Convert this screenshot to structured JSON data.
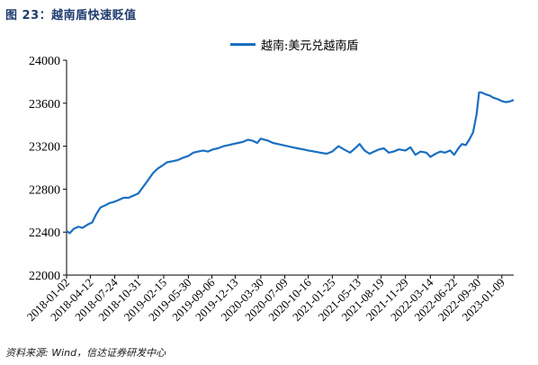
{
  "figure": {
    "title": "图 23：越南盾快速贬值",
    "source": "资料来源: Wind，信达证券研发中心"
  },
  "colors": {
    "line": "#1a6fc0",
    "axis": "#000000",
    "title": "#1f3b6e"
  },
  "chart_data": {
    "type": "line",
    "title": "",
    "xlabel": "",
    "ylabel": "",
    "ylim": [
      22000,
      24000
    ],
    "yticks": [
      22000,
      22400,
      22800,
      23200,
      23600,
      24000
    ],
    "xlim": [
      "2018-01-02",
      "2023-02-28"
    ],
    "xticks": [
      "2018-01-02",
      "2018-04-12",
      "2018-07-24",
      "2018-10-31",
      "2019-02-15",
      "2019-05-30",
      "2019-09-06",
      "2019-12-13",
      "2020-03-30",
      "2020-07-09",
      "2020-10-16",
      "2021-01-25",
      "2021-05-13",
      "2021-08-19",
      "2021-11-29",
      "2022-03-14",
      "2022-06-22",
      "2022-09-30",
      "2023-01-09"
    ],
    "grid": false,
    "legend_position": "top",
    "series": [
      {
        "name": "越南:美元兑越南盾",
        "x": [
          "2018-01-02",
          "2018-01-15",
          "2018-02-01",
          "2018-02-20",
          "2018-03-10",
          "2018-04-01",
          "2018-04-20",
          "2018-05-05",
          "2018-05-25",
          "2018-06-15",
          "2018-07-01",
          "2018-07-20",
          "2018-08-10",
          "2018-08-30",
          "2018-09-20",
          "2018-10-10",
          "2018-10-31",
          "2018-11-20",
          "2018-12-10",
          "2019-01-01",
          "2019-01-20",
          "2019-02-10",
          "2019-03-01",
          "2019-03-25",
          "2019-04-15",
          "2019-05-05",
          "2019-05-30",
          "2019-06-20",
          "2019-07-10",
          "2019-08-01",
          "2019-08-20",
          "2019-09-10",
          "2019-10-01",
          "2019-10-25",
          "2019-11-15",
          "2019-12-05",
          "2019-12-25",
          "2020-01-15",
          "2020-02-05",
          "2020-02-25",
          "2020-03-15",
          "2020-03-30",
          "2020-04-15",
          "2020-05-01",
          "2020-05-20",
          "2020-06-10",
          "2020-07-01",
          "2020-07-20",
          "2020-08-10",
          "2020-09-01",
          "2020-09-25",
          "2020-10-16",
          "2020-11-10",
          "2020-12-05",
          "2021-01-01",
          "2021-01-25",
          "2021-02-20",
          "2021-03-15",
          "2021-04-10",
          "2021-05-01",
          "2021-05-20",
          "2021-06-10",
          "2021-07-01",
          "2021-07-20",
          "2021-08-10",
          "2021-08-30",
          "2021-09-20",
          "2021-10-10",
          "2021-11-01",
          "2021-11-29",
          "2021-12-20",
          "2022-01-10",
          "2022-02-01",
          "2022-02-25",
          "2022-03-14",
          "2022-04-05",
          "2022-04-25",
          "2022-05-15",
          "2022-06-05",
          "2022-06-22",
          "2022-07-10",
          "2022-07-25",
          "2022-08-10",
          "2022-08-25",
          "2022-09-10",
          "2022-09-25",
          "2022-10-05",
          "2022-10-15",
          "2022-10-25",
          "2022-11-05",
          "2022-11-20",
          "2022-12-05",
          "2022-12-20",
          "2023-01-09",
          "2023-01-25",
          "2023-02-10",
          "2023-02-28"
        ],
        "values": [
          22410,
          22390,
          22430,
          22450,
          22440,
          22470,
          22490,
          22560,
          22630,
          22650,
          22670,
          22680,
          22700,
          22720,
          22720,
          22740,
          22760,
          22820,
          22880,
          22950,
          22990,
          23020,
          23050,
          23060,
          23070,
          23090,
          23110,
          23140,
          23150,
          23160,
          23150,
          23170,
          23180,
          23200,
          23210,
          23220,
          23230,
          23240,
          23260,
          23250,
          23230,
          23270,
          23260,
          23250,
          23230,
          23220,
          23210,
          23200,
          23190,
          23180,
          23170,
          23160,
          23150,
          23140,
          23130,
          23150,
          23200,
          23170,
          23140,
          23180,
          23220,
          23160,
          23130,
          23150,
          23170,
          23180,
          23140,
          23150,
          23170,
          23160,
          23190,
          23120,
          23150,
          23140,
          23100,
          23130,
          23150,
          23140,
          23160,
          23120,
          23180,
          23220,
          23210,
          23260,
          23330,
          23500,
          23700,
          23700,
          23690,
          23680,
          23670,
          23650,
          23640,
          23620,
          23610,
          23615,
          23630
        ]
      }
    ]
  }
}
